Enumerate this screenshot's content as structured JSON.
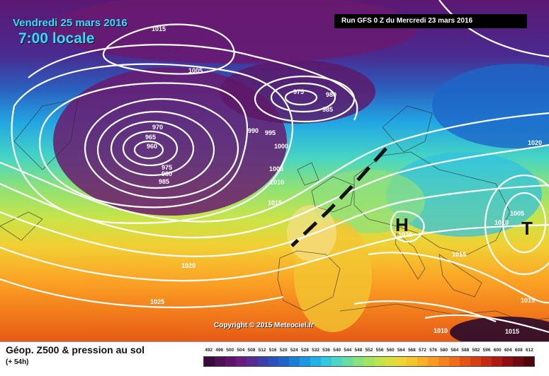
{
  "header": {
    "date": "Vendredi 25 mars 2016",
    "hour": "7:00 locale",
    "run": "Run GFS 0 Z du Mercredi 23 mars 2016"
  },
  "map": {
    "copyright": "Copyright © 2015 Meteociel.fr",
    "isobar_labels": [
      "1015",
      "1005",
      "975",
      "980",
      "985",
      "970",
      "965",
      "960",
      "975",
      "980",
      "985",
      "990",
      "995",
      "1000",
      "1005",
      "1010",
      "1015",
      "1020",
      "1025",
      "1020",
      "1005",
      "1010",
      "1015",
      "1015",
      "1010",
      "1015",
      "1020"
    ],
    "pressure_centers": [
      {
        "symbol": "H",
        "value": "1020"
      },
      {
        "symbol": "T",
        "value": "1005"
      }
    ]
  },
  "legend": {
    "title": "Géop. Z500 & pression au sol",
    "subtitle": "(+ 54h)",
    "scale_values": [
      "492",
      "496",
      "500",
      "504",
      "508",
      "512",
      "516",
      "520",
      "524",
      "528",
      "532",
      "536",
      "540",
      "544",
      "548",
      "552",
      "556",
      "560",
      "564",
      "568",
      "572",
      "576",
      "580",
      "584",
      "588",
      "592",
      "596",
      "600",
      "604",
      "608",
      "612"
    ],
    "scale_colors": [
      "#3a0a3c",
      "#4d0f55",
      "#5e146a",
      "#6c1a7e",
      "#5a2a93",
      "#3f3ea8",
      "#2a52bb",
      "#1f66c8",
      "#1a7fd6",
      "#1a99e2",
      "#20b2e6",
      "#33c7e0",
      "#4dd6c6",
      "#68dda2",
      "#86e27e",
      "#a3e55e",
      "#c2e44a",
      "#dcde3e",
      "#eed436",
      "#f7c42e",
      "#fbb028",
      "#fb9a22",
      "#f5841d",
      "#ed6d19",
      "#e35516",
      "#d63e13",
      "#c42a12",
      "#ac1a12",
      "#8e0f12",
      "#6e0910",
      "#50050c"
    ]
  }
}
